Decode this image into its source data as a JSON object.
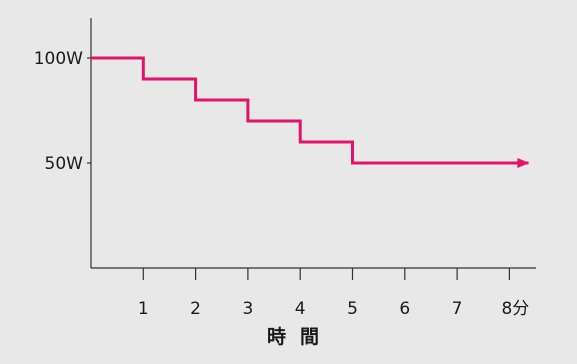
{
  "chart_data": {
    "type": "line",
    "line_style": "step",
    "x": [
      0,
      1,
      2,
      3,
      4,
      5,
      8
    ],
    "y": [
      100,
      90,
      80,
      70,
      60,
      50,
      50
    ],
    "xlim": [
      0,
      8
    ],
    "ylim": [
      0,
      100
    ],
    "x_ticks": [
      {
        "value": 1,
        "label": "1"
      },
      {
        "value": 2,
        "label": "2"
      },
      {
        "value": 3,
        "label": "3"
      },
      {
        "value": 4,
        "label": "4"
      },
      {
        "value": 5,
        "label": "5"
      },
      {
        "value": 6,
        "label": "6"
      },
      {
        "value": 7,
        "label": "7"
      },
      {
        "value": 8,
        "label": "8分"
      }
    ],
    "y_ticks": [
      {
        "value": 100,
        "label": "100W"
      },
      {
        "value": 50,
        "label": "50W"
      }
    ],
    "xlabel": "時間",
    "ylabel": "",
    "title": "",
    "grid": false,
    "arrow_at_end": true,
    "colors": {
      "line": "#e3136b",
      "axis": "#333333",
      "background": "#e8e8e8"
    }
  }
}
